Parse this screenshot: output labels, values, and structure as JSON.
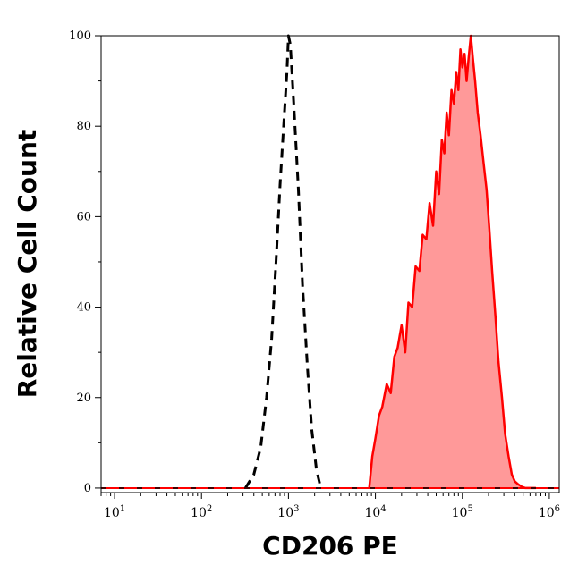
{
  "chart_data": {
    "type": "area",
    "title": "",
    "xlabel": "CD206 PE",
    "ylabel": "Relative Cell Count",
    "xscale": "log",
    "xlim": [
      7,
      1300000
    ],
    "ylim": [
      -1,
      100
    ],
    "grid": false,
    "legend": "none",
    "yticks": [
      {
        "value": 0,
        "label": "0"
      },
      {
        "value": 20,
        "label": "20"
      },
      {
        "value": 40,
        "label": "40"
      },
      {
        "value": 60,
        "label": "60"
      },
      {
        "value": 80,
        "label": "80"
      },
      {
        "value": 100,
        "label": "100"
      }
    ],
    "xticks": [
      {
        "value": 10,
        "base": "10",
        "exp": "1"
      },
      {
        "value": 100,
        "base": "10",
        "exp": "2"
      },
      {
        "value": 1000,
        "base": "10",
        "exp": "3"
      },
      {
        "value": 10000,
        "base": "10",
        "exp": "4"
      },
      {
        "value": 100000,
        "base": "10",
        "exp": "5"
      },
      {
        "value": 1000000,
        "base": "10",
        "exp": "6"
      }
    ],
    "series": [
      {
        "style": "dashed",
        "color": "#000000",
        "fill": false,
        "x": [
          320,
          400,
          480,
          560,
          640,
          720,
          800,
          880,
          960,
          1000,
          1050,
          1150,
          1300,
          1450,
          1650,
          1850,
          2100,
          2350
        ],
        "y": [
          0,
          3,
          9,
          20,
          33,
          50,
          67,
          80,
          92,
          100,
          98,
          85,
          66,
          45,
          27,
          13,
          4,
          0
        ]
      },
      {
        "style": "solid",
        "color": "#ff0000",
        "fill": true,
        "fill_color": "#ff9999",
        "x": [
          8500,
          9200,
          10000,
          11000,
          12000,
          13500,
          15000,
          16500,
          18000,
          20000,
          22000,
          24000,
          26500,
          29000,
          32000,
          35000,
          38500,
          42000,
          46000,
          50000,
          54000,
          58000,
          62000,
          66000,
          70000,
          75000,
          80000,
          85000,
          90000,
          95000,
          100000,
          106000,
          112000,
          118000,
          125000,
          132000,
          140000,
          150000,
          162000,
          175000,
          190000,
          205000,
          220000,
          240000,
          260000,
          285000,
          310000,
          340000,
          370000,
          400000,
          440000,
          480000,
          530000,
          580000,
          640000,
          700000
        ],
        "y": [
          0,
          7,
          11,
          16,
          18,
          23,
          21,
          29,
          31,
          36,
          30,
          41,
          40,
          49,
          48,
          56,
          55,
          63,
          58,
          70,
          65,
          77,
          74,
          83,
          78,
          88,
          85,
          92,
          88,
          97,
          93,
          96,
          90,
          95,
          100,
          95,
          90,
          83,
          78,
          72,
          66,
          57,
          48,
          38,
          28,
          20,
          12,
          7,
          3,
          1.5,
          0.8,
          0.3,
          0,
          0,
          0,
          0
        ]
      }
    ]
  }
}
